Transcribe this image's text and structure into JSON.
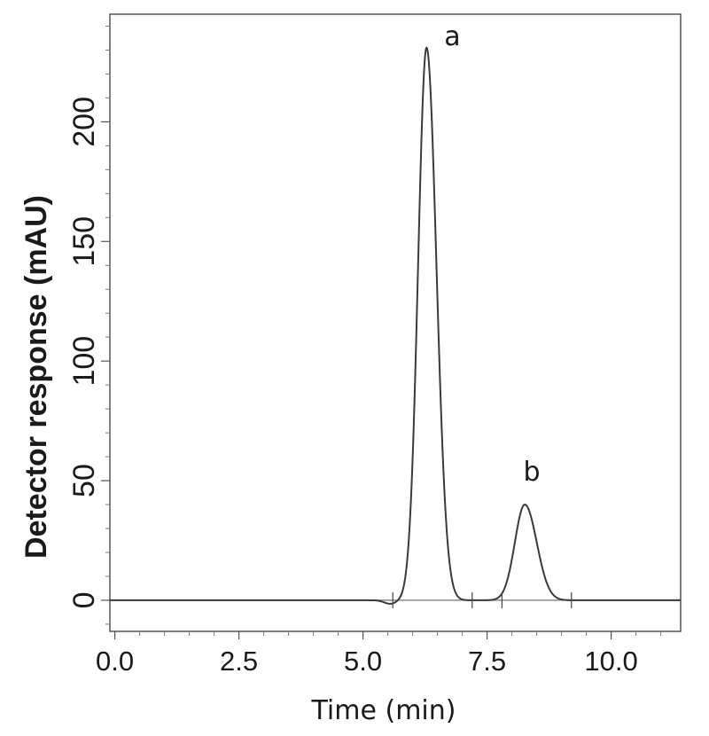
{
  "chart_data": {
    "type": "line",
    "xlabel": "Time (min)",
    "ylabel": "Detector response (mAU)",
    "xlim": [
      -0.1,
      11.4
    ],
    "ylim": [
      -13,
      245
    ],
    "x_ticks": [
      0.0,
      2.5,
      5.0,
      7.5,
      10.0
    ],
    "x_tick_labels": [
      "0.0",
      "2.5",
      "5.0",
      "7.5",
      "10.0"
    ],
    "y_ticks": [
      0,
      50,
      100,
      150,
      200
    ],
    "y_tick_labels": [
      "0",
      "50",
      "100",
      "150",
      "200"
    ],
    "grid": false,
    "series": [
      {
        "type": "chromatogram",
        "baseline": 0,
        "dip": {
          "x": 5.55,
          "y": -1.5
        },
        "peaks": [
          {
            "label": "a",
            "retention_time": 6.28,
            "height": 231,
            "sigma_left": 0.17,
            "sigma_right": 0.2
          },
          {
            "label": "b",
            "retention_time": 8.26,
            "height": 40,
            "sigma_left": 0.2,
            "sigma_right": 0.24
          }
        ],
        "integration_marks": [
          5.6,
          7.2,
          7.8,
          9.2
        ]
      }
    ],
    "annotations": [
      {
        "text": "a",
        "x": 6.8,
        "y": 232
      },
      {
        "text": "b",
        "x": 8.4,
        "y": 50
      }
    ]
  }
}
